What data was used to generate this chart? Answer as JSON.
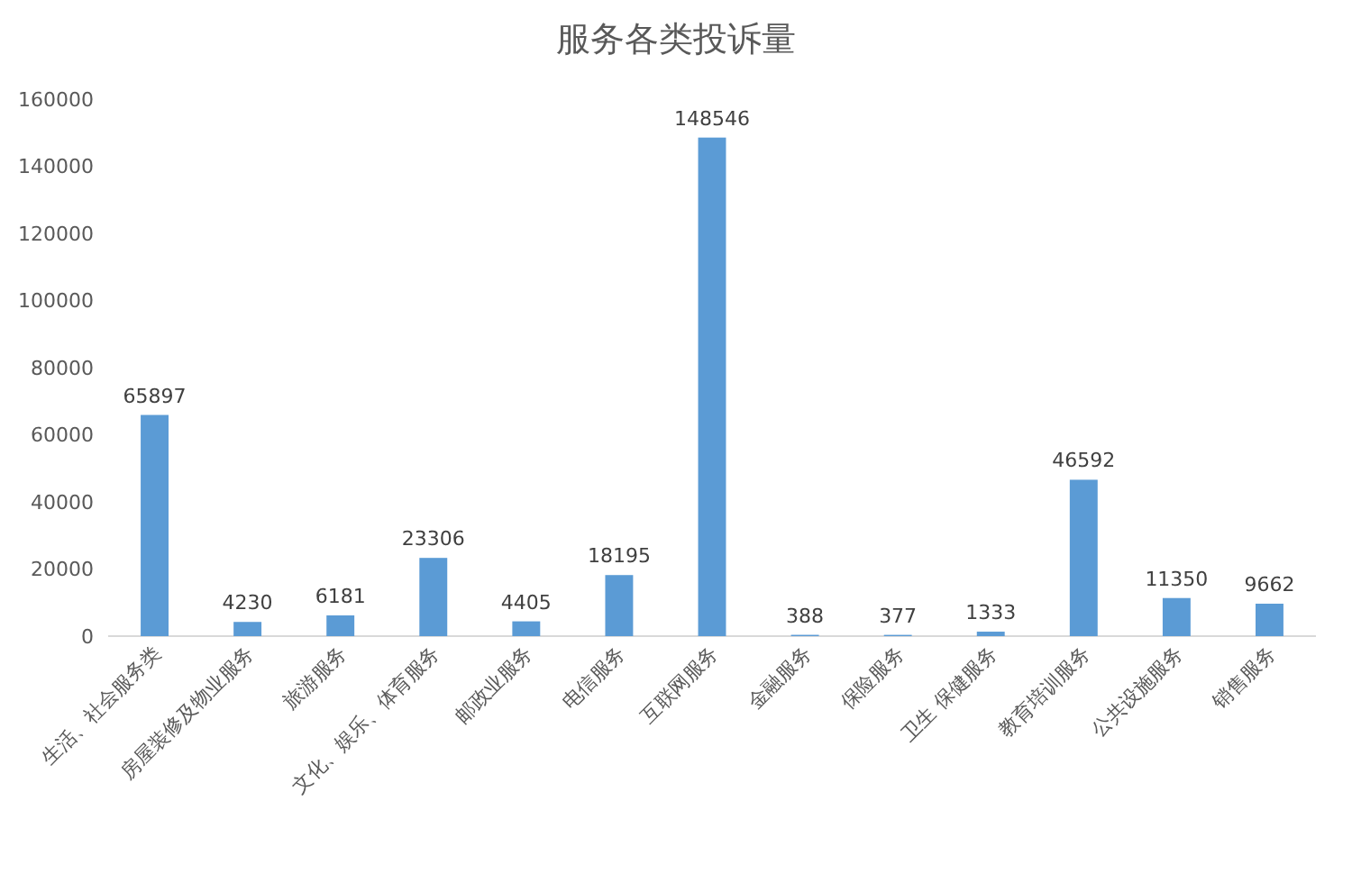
{
  "chart_data": {
    "type": "bar",
    "title": "服务各类投诉量",
    "categories": [
      "生活、社会服务类",
      "房屋装修及物业服务",
      "旅游服务",
      "文化、娱乐、体育服务",
      "邮政业服务",
      "电信服务",
      "互联网服务",
      "金融服务",
      "保险服务",
      "卫生 保健服务",
      "教育培训服务",
      "公共设施服务",
      "销售服务"
    ],
    "values": [
      65897,
      4230,
      6181,
      23306,
      4405,
      18195,
      148546,
      388,
      377,
      1333,
      46592,
      11350,
      9662
    ],
    "color": "#5b9bd5",
    "ylim": [
      0,
      160000
    ],
    "yticks": [
      0,
      20000,
      40000,
      60000,
      80000,
      100000,
      120000,
      140000,
      160000
    ],
    "data_labels": true
  }
}
